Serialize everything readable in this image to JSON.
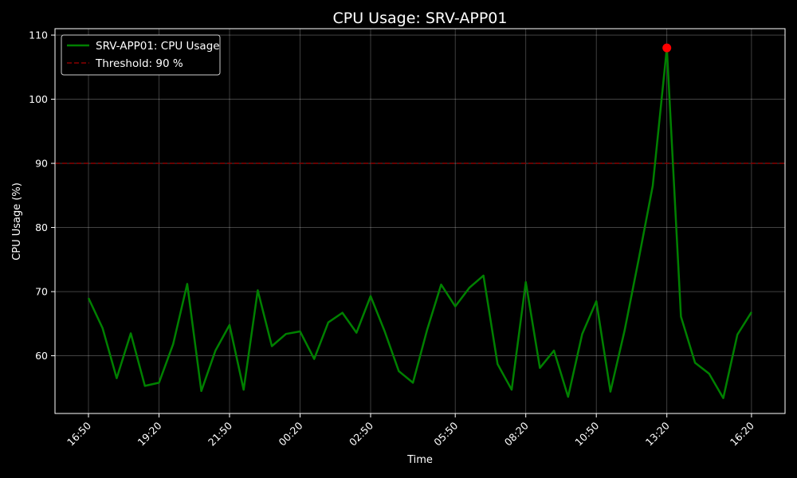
{
  "chart_data": {
    "type": "line",
    "title": "CPU Usage: SRV-APP01",
    "xlabel": "Time",
    "ylabel": "CPU Usage (%)",
    "x_tick_labels": [
      "16:50",
      "19:20",
      "21:50",
      "00:20",
      "02:50",
      "05:50",
      "08:20",
      "10:50",
      "13:20",
      "16:20"
    ],
    "x_tick_index": [
      0,
      5,
      10,
      15,
      20,
      26,
      31,
      36,
      41,
      47
    ],
    "y_ticks": [
      60,
      70,
      80,
      90,
      100,
      110
    ],
    "ylim": [
      51,
      111
    ],
    "grid": true,
    "legend_position": "upper-left",
    "series": [
      {
        "name": "SRV-APP01: CPU Usage",
        "color": "#008000",
        "values": [
          69.0,
          64.3,
          56.5,
          63.5,
          55.3,
          55.8,
          61.8,
          71.2,
          54.5,
          60.8,
          64.8,
          54.7,
          70.2,
          61.5,
          63.4,
          63.8,
          59.5,
          65.2,
          66.7,
          63.6,
          69.3,
          63.8,
          57.6,
          55.8,
          64.0,
          71.1,
          67.7,
          70.6,
          72.5,
          58.7,
          54.7,
          71.5,
          58.1,
          60.8,
          53.6,
          63.4,
          68.5,
          54.4,
          63.9,
          75.0,
          86.5,
          108.0,
          66.1,
          58.9,
          57.2,
          53.4,
          63.3,
          66.8
        ]
      }
    ],
    "threshold": {
      "name": "Threshold: 90 %",
      "value": 90,
      "color": "#8b0000"
    },
    "peak_marker": {
      "index": 41,
      "value": 108.0,
      "color": "#ff0000"
    }
  }
}
